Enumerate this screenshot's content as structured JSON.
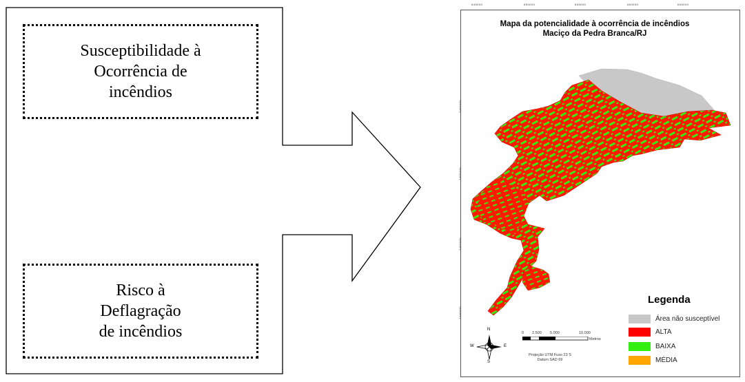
{
  "box_top": {
    "line1": "Susceptibilidade à",
    "line2": "Ocorrência de",
    "line3": "incêndios"
  },
  "box_bottom": {
    "line1": "Risco à",
    "line2": "Deflagração",
    "line3": "de incêndios"
  },
  "map": {
    "title_line1": "Mapa da potencialidade à ocorrência de incêndios",
    "title_line2": "Maciço da Pedra Branca/RJ",
    "top_ticks": [
      "645000",
      "650000",
      "655000",
      "660000",
      "665000"
    ],
    "left_ticks": [
      "7460000",
      "7455000",
      "7450000",
      "7445000"
    ],
    "legend_title": "Legenda",
    "legend": [
      {
        "label": "Área não susceptível",
        "color": "#c8c8c8"
      },
      {
        "label": "ALTA",
        "color": "#ff0000"
      },
      {
        "label": "BAIXA",
        "color": "#33ee11"
      },
      {
        "label": "MÉDIA",
        "color": "#ffa500"
      }
    ],
    "scale_labels": [
      "0",
      "2.500",
      "5.000",
      "10.000"
    ],
    "scale_unit": "Metros",
    "projection_line1": "Projeção UTM Fuso 23 S",
    "projection_line2": "Datum SAD 69",
    "compass": {
      "n": "N",
      "s": "S",
      "e": "E",
      "w": "W"
    }
  }
}
